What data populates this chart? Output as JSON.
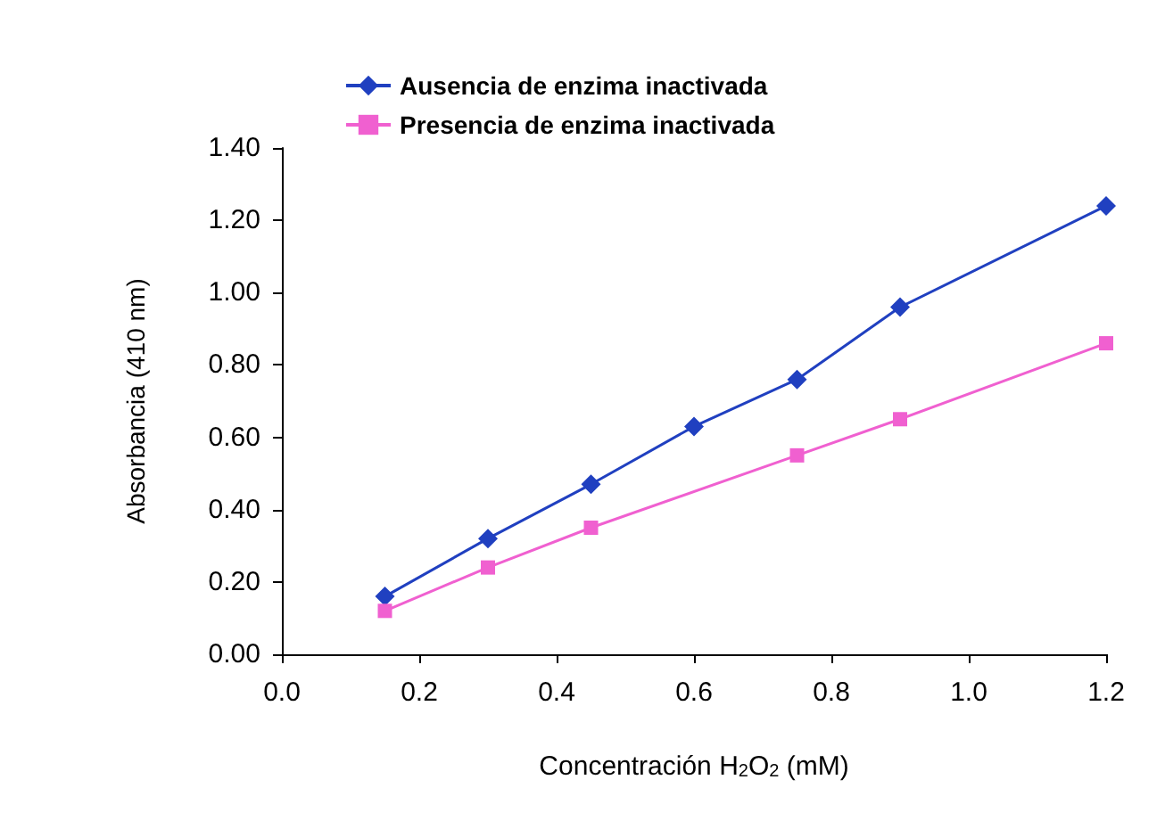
{
  "chart_data": {
    "type": "line",
    "xlabel": "Concentración H$_{2}$O$_{2}$ (mM)",
    "ylabel": "Absorbancia (410 nm)",
    "xlim": [
      0,
      1.2
    ],
    "xticks": [
      {
        "value": 0,
        "label": "0.0"
      },
      {
        "value": 0.2,
        "label": "0.2"
      },
      {
        "value": 0.4,
        "label": "0.4"
      },
      {
        "value": 0.6,
        "label": "0.6"
      },
      {
        "value": 0.8,
        "label": "0.8"
      },
      {
        "value": 1,
        "label": "1.0"
      },
      {
        "value": 1.2,
        "label": "1.2"
      }
    ],
    "ylim": [
      0,
      1.4
    ],
    "yticks": [
      {
        "value": 0,
        "label": "0.00"
      },
      {
        "value": 0.2,
        "label": "0.20"
      },
      {
        "value": 0.4,
        "label": "0.40"
      },
      {
        "value": 0.6,
        "label": "0.60"
      },
      {
        "value": 0.8,
        "label": "0.80"
      },
      {
        "value": 1,
        "label": "1.00"
      },
      {
        "value": 1.2,
        "label": "1.20"
      },
      {
        "value": 1.4,
        "label": "1.40"
      }
    ],
    "series": [
      {
        "name": "Ausencia de enzima inactivada",
        "color": "#2040c0",
        "marker": "diamond",
        "x": [
          0.15,
          0.3,
          0.45,
          0.6,
          0.75,
          0.9,
          1.2
        ],
        "values": [
          0.16,
          0.32,
          0.47,
          0.63,
          0.76,
          0.96,
          1.24
        ]
      },
      {
        "name": "Presencia de enzima inactivada",
        "color": "#f060d0",
        "marker": "square",
        "x": [
          0.15,
          0.3,
          0.45,
          0.75,
          0.9,
          1.2
        ],
        "values": [
          0.12,
          0.24,
          0.35,
          0.55,
          0.65,
          0.86
        ]
      }
    ],
    "grid": false,
    "legend": "top left"
  }
}
